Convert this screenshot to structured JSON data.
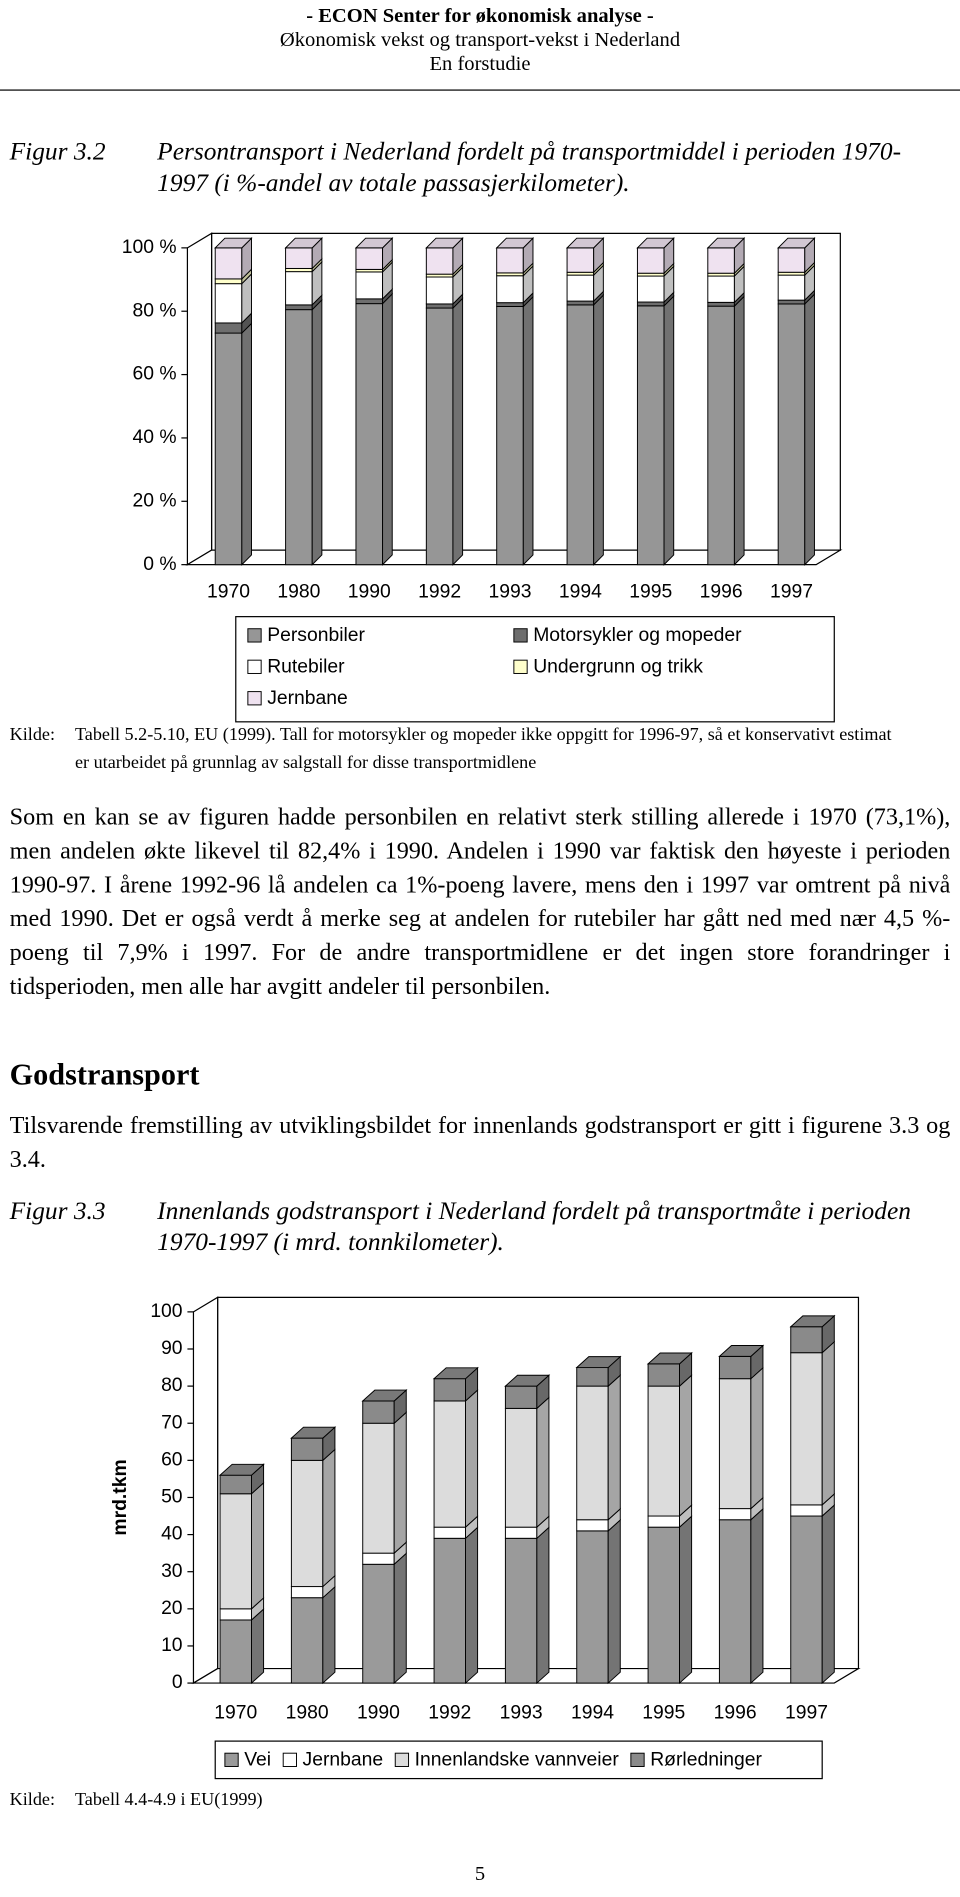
{
  "document": {
    "header": [
      "- ECON Senter for økonomisk analyse -",
      "Økonomisk vekst og transport-vekst i Nederland",
      "En forstudie"
    ],
    "figure_3_2": {
      "label": "Figur 3.2",
      "caption": "Persontransport i Nederland fordelt på transportmiddel i perioden 1970-1997 (i %-andel av totale passasjerkilometer).",
      "source_label": "Kilde:",
      "source": "Tabell 5.2-5.10, EU (1999). Tall for motorsykler og mopeder ikke oppgitt for 1996-97, så et konservativt estimat er utarbeidet på grunnlag av salgstall for disse transportmidlene"
    },
    "paragraph_1": "Som en kan se av figuren hadde personbilen en relativt sterk stilling allerede i 1970 (73,1%), men andelen økte likevel til 82,4% i 1990. Andelen i 1990 var faktisk den høyeste i perioden 1990-97. I årene 1992-96 lå andelen ca 1%-poeng lavere, mens den i 1997 var omtrent på nivå med 1990. Det er også verdt å merke seg at andelen for rutebiler har gått ned med nær 4,5 %-poeng til 7,9% i 1997. For de andre transportmidlene er det ingen store forandringer i tidsperioden, men alle har avgitt andeler til personbilen.",
    "heading": "Godstransport",
    "paragraph_2": "Tilsvarende fremstilling av utviklingsbildet for innenlands godstransport er gitt i figurene 3.3 og 3.4.",
    "figure_3_3": {
      "label": "Figur 3.3",
      "caption": "Innenlands godstransport i Nederland fordelt på transportmåte i perioden 1970-1997 (i mrd. tonnkilometer).",
      "source_label": "Kilde:",
      "source": "Tabell 4.4-4.9 i EU(1999)"
    },
    "page_number": "5"
  },
  "chart_data": [
    {
      "type": "bar",
      "stacked": true,
      "categories": [
        "1970",
        "1980",
        "1990",
        "1992",
        "1993",
        "1994",
        "1995",
        "1996",
        "1997"
      ],
      "series": [
        {
          "name": "Personbiler",
          "color": "#969696",
          "values": [
            73.1,
            80.5,
            82.4,
            81.0,
            81.5,
            82.0,
            81.7,
            81.6,
            82.3
          ]
        },
        {
          "name": "Motorsykler og mopeder",
          "color": "#6e6e6e",
          "values": [
            3.2,
            1.5,
            1.5,
            1.3,
            1.2,
            1.2,
            1.2,
            1.2,
            1.2
          ]
        },
        {
          "name": "Rutebiler",
          "color": "#ffffff",
          "values": [
            12.4,
            10.5,
            8.5,
            8.5,
            8.5,
            8.2,
            8.2,
            8.3,
            7.9
          ]
        },
        {
          "name": "Undergrunn og trikk",
          "color": "#ffffcc",
          "values": [
            1.5,
            1.0,
            0.8,
            0.9,
            0.9,
            0.9,
            0.9,
            0.9,
            0.9
          ]
        },
        {
          "name": "Jernbane",
          "color": "#efe2f0",
          "values": [
            9.8,
            6.5,
            6.8,
            8.3,
            7.9,
            7.7,
            8.0,
            8.0,
            7.7
          ]
        }
      ],
      "ylim": [
        0,
        100
      ],
      "yticks": [
        {
          "value": 0,
          "label": "0 %"
        },
        {
          "value": 20,
          "label": "20 %"
        },
        {
          "value": 40,
          "label": "40 %"
        },
        {
          "value": 60,
          "label": "60 %"
        },
        {
          "value": 80,
          "label": "80 %"
        },
        {
          "value": 100,
          "label": "100 %"
        }
      ],
      "legend_columns": 2
    },
    {
      "type": "bar",
      "stacked": true,
      "ylabel": "mrd.tkm",
      "categories": [
        "1970",
        "1980",
        "1990",
        "1992",
        "1993",
        "1994",
        "1995",
        "1996",
        "1997"
      ],
      "series": [
        {
          "name": "Vei",
          "color": "#9a9a9a",
          "values": [
            17,
            23,
            32,
            39,
            39,
            41,
            42,
            44,
            45
          ]
        },
        {
          "name": "Jernbane",
          "color": "#ffffff",
          "values": [
            3,
            3,
            3,
            3,
            3,
            3,
            3,
            3,
            3
          ]
        },
        {
          "name": "Innenlandske vannveier",
          "color": "#dcdcdc",
          "values": [
            31,
            34,
            35,
            34,
            32,
            36,
            35,
            35,
            41
          ]
        },
        {
          "name": "Rørledninger",
          "color": "#8a8a8a",
          "values": [
            5,
            6,
            6,
            6,
            6,
            5,
            6,
            6,
            7
          ]
        }
      ],
      "ylim": [
        0,
        100
      ],
      "yticks": [
        0,
        10,
        20,
        30,
        40,
        50,
        60,
        70,
        80,
        90,
        100
      ],
      "legend_columns": 4
    }
  ]
}
